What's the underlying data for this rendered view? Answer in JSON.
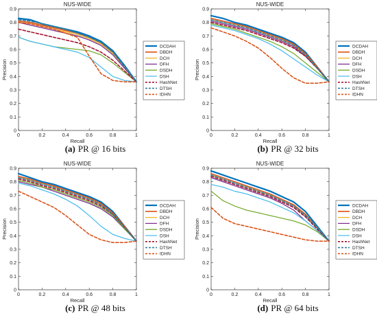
{
  "legend_names": [
    "DCDAH",
    "DBDH",
    "DCH",
    "DFH",
    "DSDH",
    "DSH",
    "HashNet",
    "DTSH",
    "IDHN"
  ],
  "styles": {
    "DCDAH": {
      "color": "#0072bd",
      "dash": "solid",
      "width": 2.2
    },
    "DBDH": {
      "color": "#d95319",
      "dash": "solid",
      "width": 1.6
    },
    "DCH": {
      "color": "#edb120",
      "dash": "solid",
      "width": 1.3
    },
    "DFH": {
      "color": "#7e2f8e",
      "dash": "solid",
      "width": 1.3
    },
    "DSDH": {
      "color": "#77ac30",
      "dash": "solid",
      "width": 1.3
    },
    "DSH": {
      "color": "#4dbeee",
      "dash": "solid",
      "width": 1.3
    },
    "HashNet": {
      "color": "#a2142f",
      "dash": "dashed",
      "width": 1.6
    },
    "DTSH": {
      "color": "#2f7f9a",
      "dash": "dashed",
      "width": 1.6
    },
    "IDHN": {
      "color": "#d95319",
      "dash": "dashed",
      "width": 1.6
    }
  },
  "chart_data": [
    {
      "type": "line",
      "title": "NUS-WIDE",
      "xlabel": "Recall",
      "ylabel": "Precision",
      "xlim": [
        0,
        1
      ],
      "ylim": [
        0,
        0.9
      ],
      "xticks": [
        "0",
        "0.2",
        "0.4",
        "0.6",
        "0.8",
        "1"
      ],
      "yticks": [
        "0",
        "0.1",
        "0.2",
        "0.3",
        "0.4",
        "0.5",
        "0.6",
        "0.7",
        "0.8",
        "0.9"
      ],
      "legend": "top-right",
      "grid": false,
      "caption_label": "(a)",
      "caption_text": "PR @ 16 bits",
      "x": [
        0,
        0.1,
        0.2,
        0.3,
        0.4,
        0.5,
        0.6,
        0.7,
        0.8,
        0.9,
        1.0
      ],
      "series": [
        {
          "name": "DCDAH",
          "values": [
            0.83,
            0.82,
            0.79,
            0.77,
            0.75,
            0.73,
            0.7,
            0.66,
            0.59,
            0.48,
            0.36
          ]
        },
        {
          "name": "DBDH",
          "values": [
            0.81,
            0.8,
            0.78,
            0.76,
            0.74,
            0.72,
            0.69,
            0.65,
            0.58,
            0.47,
            0.36
          ]
        },
        {
          "name": "DCH",
          "values": [
            0.8,
            0.79,
            0.77,
            0.75,
            0.73,
            0.71,
            0.68,
            0.64,
            0.57,
            0.47,
            0.36
          ]
        },
        {
          "name": "DFH",
          "values": [
            0.8,
            0.78,
            0.76,
            0.74,
            0.72,
            0.7,
            0.67,
            0.63,
            0.56,
            0.46,
            0.36
          ]
        },
        {
          "name": "DSDH",
          "values": [
            0.69,
            0.66,
            0.64,
            0.62,
            0.61,
            0.6,
            0.59,
            0.56,
            0.5,
            0.43,
            0.36
          ]
        },
        {
          "name": "DSH",
          "values": [
            0.69,
            0.66,
            0.64,
            0.62,
            0.6,
            0.58,
            0.54,
            0.47,
            0.4,
            0.37,
            0.36
          ]
        },
        {
          "name": "HashNet",
          "values": [
            0.75,
            0.73,
            0.71,
            0.69,
            0.67,
            0.65,
            0.62,
            0.58,
            0.52,
            0.44,
            0.36
          ]
        },
        {
          "name": "DTSH",
          "values": [
            0.82,
            0.81,
            0.79,
            0.77,
            0.75,
            0.72,
            0.69,
            0.65,
            0.58,
            0.47,
            0.36
          ]
        },
        {
          "name": "IDHN",
          "values": [
            0.8,
            0.79,
            0.77,
            0.75,
            0.72,
            0.69,
            0.55,
            0.42,
            0.37,
            0.36,
            0.36
          ]
        }
      ]
    },
    {
      "type": "line",
      "title": "NUS-WIDE",
      "xlabel": "Recall",
      "ylabel": "Precision",
      "xlim": [
        0,
        1
      ],
      "ylim": [
        0,
        0.9
      ],
      "xticks": [
        "0",
        "0.2",
        "0.4",
        "0.6",
        "0.8",
        "1"
      ],
      "yticks": [
        "0",
        "0.1",
        "0.2",
        "0.3",
        "0.4",
        "0.5",
        "0.6",
        "0.7",
        "0.8",
        "0.9"
      ],
      "legend": "top-right",
      "grid": false,
      "caption_label": "(b)",
      "caption_text": "PR @ 32 bits",
      "x": [
        0,
        0.1,
        0.2,
        0.3,
        0.4,
        0.5,
        0.6,
        0.7,
        0.8,
        0.9,
        1.0
      ],
      "series": [
        {
          "name": "DCDAH",
          "values": [
            0.85,
            0.83,
            0.8,
            0.78,
            0.75,
            0.72,
            0.69,
            0.65,
            0.58,
            0.47,
            0.36
          ]
        },
        {
          "name": "DBDH",
          "values": [
            0.83,
            0.81,
            0.79,
            0.77,
            0.74,
            0.71,
            0.68,
            0.64,
            0.57,
            0.47,
            0.36
          ]
        },
        {
          "name": "DCH",
          "values": [
            0.82,
            0.8,
            0.78,
            0.76,
            0.73,
            0.7,
            0.67,
            0.63,
            0.56,
            0.46,
            0.36
          ]
        },
        {
          "name": "DFH",
          "values": [
            0.81,
            0.79,
            0.77,
            0.75,
            0.72,
            0.69,
            0.66,
            0.62,
            0.55,
            0.46,
            0.36
          ]
        },
        {
          "name": "DSDH",
          "values": [
            0.79,
            0.77,
            0.75,
            0.72,
            0.69,
            0.66,
            0.62,
            0.57,
            0.5,
            0.43,
            0.36
          ]
        },
        {
          "name": "DSH",
          "values": [
            0.78,
            0.76,
            0.74,
            0.71,
            0.68,
            0.64,
            0.59,
            0.53,
            0.47,
            0.41,
            0.36
          ]
        },
        {
          "name": "HashNet",
          "values": [
            0.8,
            0.78,
            0.76,
            0.74,
            0.71,
            0.68,
            0.65,
            0.61,
            0.55,
            0.46,
            0.36
          ]
        },
        {
          "name": "DTSH",
          "values": [
            0.82,
            0.8,
            0.78,
            0.76,
            0.73,
            0.7,
            0.67,
            0.63,
            0.56,
            0.46,
            0.36
          ]
        },
        {
          "name": "IDHN",
          "values": [
            0.76,
            0.73,
            0.7,
            0.66,
            0.61,
            0.54,
            0.46,
            0.39,
            0.35,
            0.35,
            0.36
          ]
        }
      ]
    },
    {
      "type": "line",
      "title": "NUS-WIDE",
      "xlabel": "Recall",
      "ylabel": "Precision",
      "xlim": [
        0,
        1
      ],
      "ylim": [
        0,
        0.9
      ],
      "xticks": [
        "0",
        "0.2",
        "0.4",
        "0.6",
        "0.8",
        "1"
      ],
      "yticks": [
        "0",
        "0.1",
        "0.2",
        "0.3",
        "0.4",
        "0.5",
        "0.6",
        "0.7",
        "0.8",
        "0.9"
      ],
      "legend": "top-right",
      "grid": false,
      "caption_label": "(c)",
      "caption_text": "PR @ 48 bits",
      "x": [
        0,
        0.1,
        0.2,
        0.3,
        0.4,
        0.5,
        0.6,
        0.7,
        0.8,
        0.9,
        1.0
      ],
      "series": [
        {
          "name": "DCDAH",
          "values": [
            0.86,
            0.83,
            0.8,
            0.78,
            0.75,
            0.72,
            0.69,
            0.65,
            0.58,
            0.47,
            0.36
          ]
        },
        {
          "name": "DBDH",
          "values": [
            0.84,
            0.82,
            0.79,
            0.77,
            0.74,
            0.71,
            0.68,
            0.64,
            0.57,
            0.47,
            0.36
          ]
        },
        {
          "name": "DCH",
          "values": [
            0.83,
            0.81,
            0.78,
            0.76,
            0.73,
            0.7,
            0.67,
            0.63,
            0.56,
            0.46,
            0.36
          ]
        },
        {
          "name": "DFH",
          "values": [
            0.8,
            0.78,
            0.76,
            0.73,
            0.7,
            0.67,
            0.64,
            0.6,
            0.54,
            0.45,
            0.36
          ]
        },
        {
          "name": "DSDH",
          "values": [
            0.81,
            0.79,
            0.76,
            0.74,
            0.71,
            0.68,
            0.65,
            0.61,
            0.55,
            0.45,
            0.36
          ]
        },
        {
          "name": "DSH",
          "values": [
            0.79,
            0.77,
            0.74,
            0.71,
            0.67,
            0.62,
            0.55,
            0.47,
            0.41,
            0.38,
            0.36
          ]
        },
        {
          "name": "HashNet",
          "values": [
            0.82,
            0.8,
            0.77,
            0.75,
            0.72,
            0.69,
            0.66,
            0.62,
            0.56,
            0.46,
            0.36
          ]
        },
        {
          "name": "DTSH",
          "values": [
            0.83,
            0.81,
            0.78,
            0.76,
            0.73,
            0.7,
            0.67,
            0.63,
            0.56,
            0.46,
            0.36
          ]
        },
        {
          "name": "IDHN",
          "values": [
            0.73,
            0.69,
            0.65,
            0.61,
            0.55,
            0.48,
            0.41,
            0.37,
            0.35,
            0.35,
            0.36
          ]
        }
      ]
    },
    {
      "type": "line",
      "title": "NUS-WIDE",
      "xlabel": "Recall",
      "ylabel": "Precision",
      "xlim": [
        0,
        1
      ],
      "ylim": [
        0,
        0.9
      ],
      "xticks": [
        "0",
        "0.2",
        "0.4",
        "0.6",
        "0.8",
        "1"
      ],
      "yticks": [
        "0",
        "0.1",
        "0.2",
        "0.3",
        "0.4",
        "0.5",
        "0.6",
        "0.7",
        "0.8",
        "0.9"
      ],
      "legend": "top-right",
      "grid": false,
      "caption_label": "(d)",
      "caption_text": "PR @ 64 bits",
      "x": [
        0,
        0.1,
        0.2,
        0.3,
        0.4,
        0.5,
        0.6,
        0.7,
        0.8,
        0.9,
        1.0
      ],
      "series": [
        {
          "name": "DCDAH",
          "values": [
            0.88,
            0.85,
            0.82,
            0.79,
            0.76,
            0.73,
            0.69,
            0.65,
            0.58,
            0.47,
            0.36
          ]
        },
        {
          "name": "DBDH",
          "values": [
            0.86,
            0.83,
            0.8,
            0.77,
            0.74,
            0.71,
            0.67,
            0.63,
            0.56,
            0.46,
            0.36
          ]
        },
        {
          "name": "DCH",
          "values": [
            0.85,
            0.82,
            0.79,
            0.76,
            0.73,
            0.7,
            0.66,
            0.62,
            0.55,
            0.46,
            0.36
          ]
        },
        {
          "name": "DFH",
          "values": [
            0.83,
            0.8,
            0.77,
            0.74,
            0.71,
            0.68,
            0.64,
            0.59,
            0.51,
            0.44,
            0.36
          ]
        },
        {
          "name": "DSDH",
          "values": [
            0.73,
            0.66,
            0.62,
            0.59,
            0.57,
            0.55,
            0.53,
            0.51,
            0.48,
            0.43,
            0.36
          ]
        },
        {
          "name": "DSH",
          "values": [
            0.78,
            0.76,
            0.73,
            0.71,
            0.68,
            0.65,
            0.61,
            0.57,
            0.51,
            0.44,
            0.36
          ]
        },
        {
          "name": "HashNet",
          "values": [
            0.84,
            0.81,
            0.78,
            0.75,
            0.72,
            0.69,
            0.65,
            0.61,
            0.54,
            0.45,
            0.36
          ]
        },
        {
          "name": "DTSH",
          "values": [
            0.85,
            0.82,
            0.79,
            0.76,
            0.73,
            0.7,
            0.66,
            0.62,
            0.55,
            0.46,
            0.36
          ]
        },
        {
          "name": "IDHN",
          "values": [
            0.61,
            0.53,
            0.49,
            0.47,
            0.45,
            0.43,
            0.41,
            0.39,
            0.37,
            0.36,
            0.36
          ]
        }
      ]
    }
  ]
}
